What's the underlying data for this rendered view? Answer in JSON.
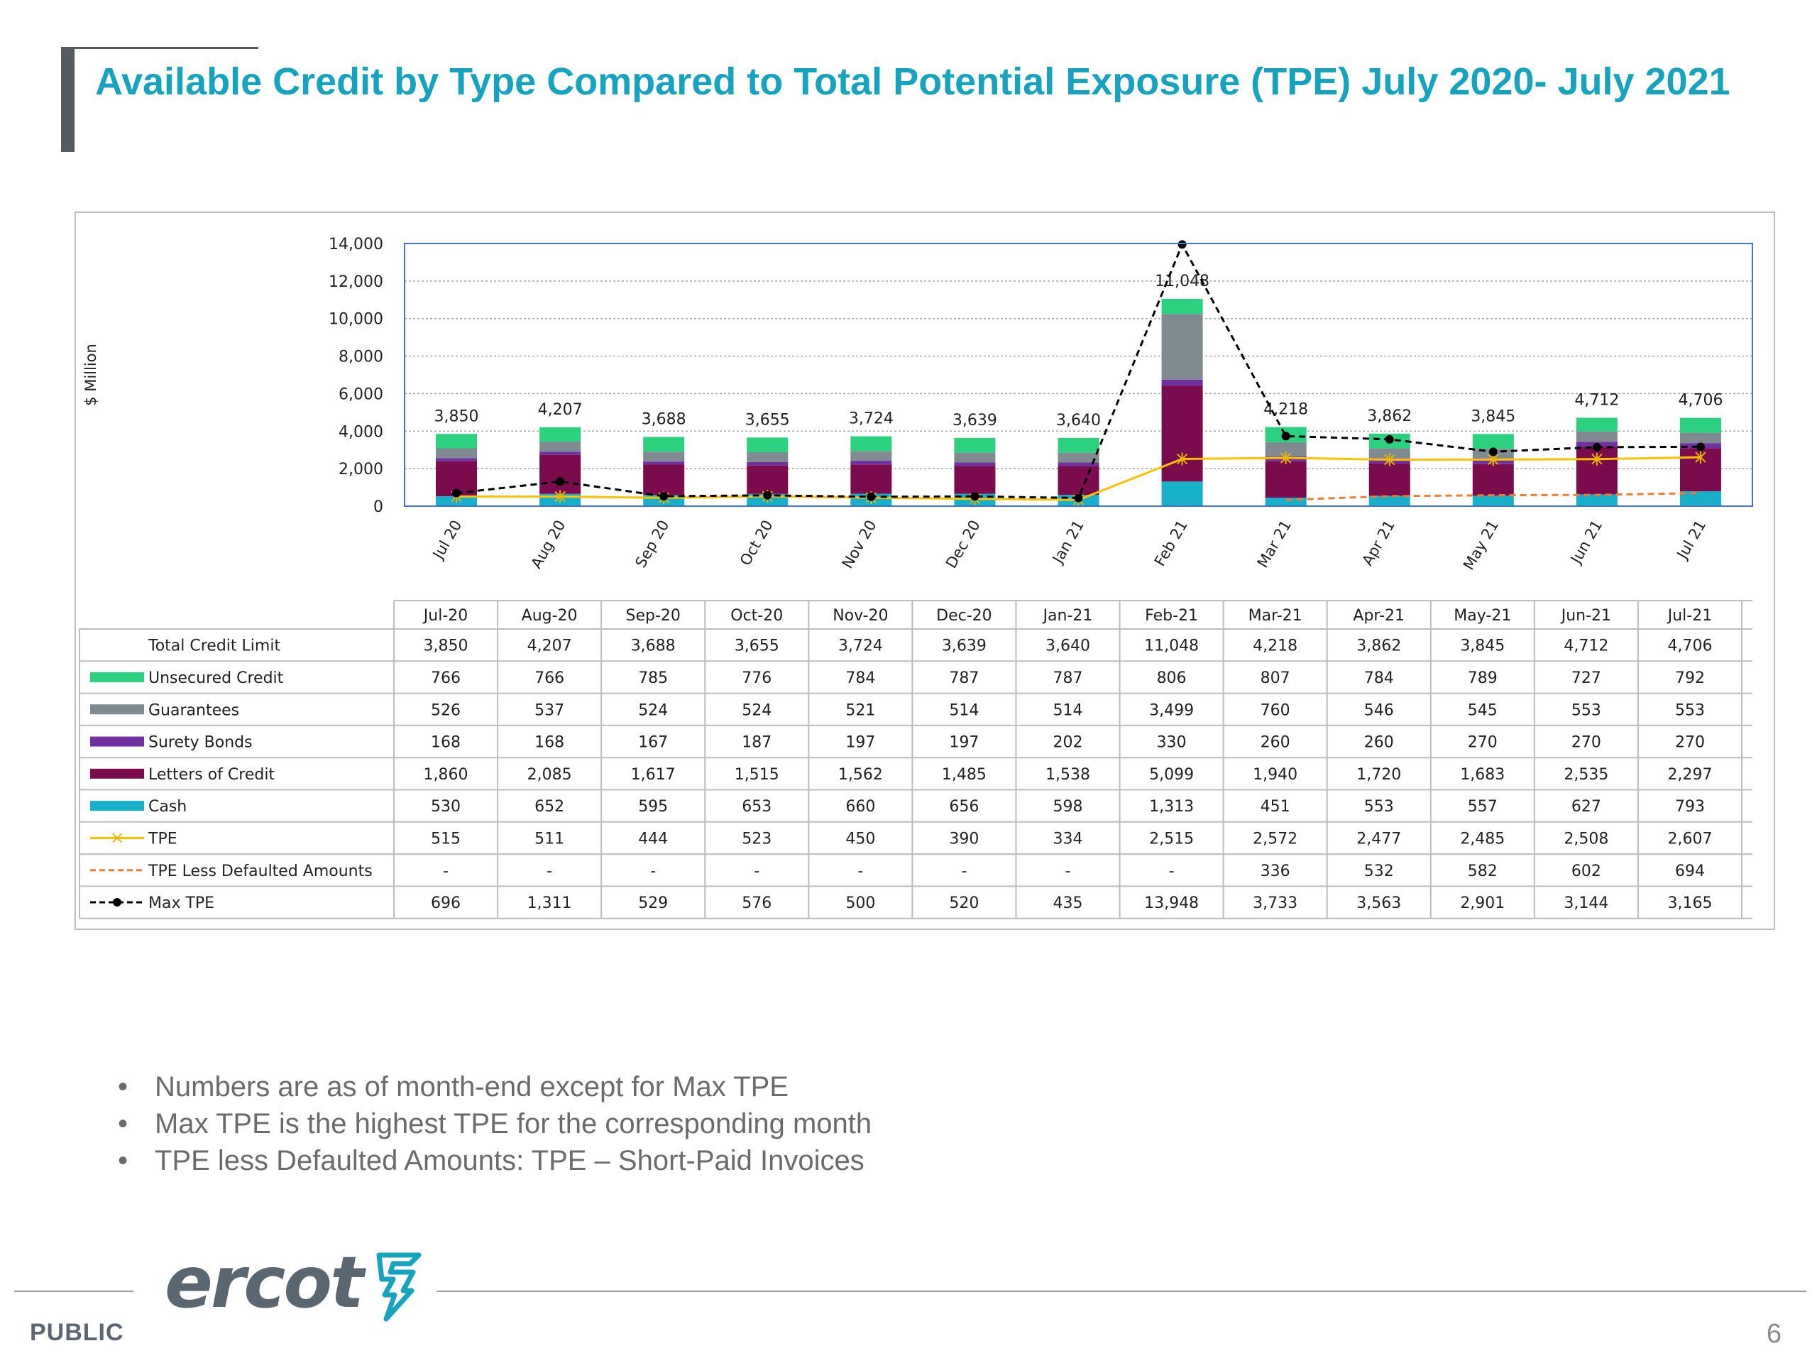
{
  "page": {
    "title": "Available Credit by Type Compared to Total Potential Exposure (TPE) July 2020- July 2021",
    "bullets": [
      "Numbers are as of month-end except for Max TPE",
      "Max TPE is the highest TPE for the corresponding month",
      "TPE less Defaulted Amounts: TPE – Short-Paid Invoices"
    ],
    "footer_label": "PUBLIC",
    "page_number": "6",
    "logo_text": "ercot"
  },
  "colors": {
    "title": "#17a3bd",
    "unsecured": "#2bd17e",
    "guarantees": "#7f8a91",
    "surety": "#7030a0",
    "loc": "#7a0b4c",
    "cash": "#18b0c8",
    "tpe": "#ffc000",
    "tpe_less": "#ed7d31",
    "max_tpe": "#000000",
    "plot_border": "#4472c4",
    "grid": "#a6a6a6"
  },
  "chart_data": {
    "type": "bar",
    "subtype": "stacked bar with line overlays and data table",
    "ylabel": "$ Million",
    "ylim": [
      0,
      14000
    ],
    "yticks": [
      "0",
      "2,000",
      "4,000",
      "6,000",
      "8,000",
      "10,000",
      "12,000",
      "14,000"
    ],
    "ytick_values": [
      0,
      2000,
      4000,
      6000,
      8000,
      10000,
      12000,
      14000
    ],
    "grid": "horizontal dashed",
    "x_tick_labels": [
      "Jul 20",
      "Aug 20",
      "Sep 20",
      "Oct 20",
      "Nov 20",
      "Dec 20",
      "Jan 21",
      "Feb 21",
      "Mar 21",
      "Apr 21",
      "May 21",
      "Jun 21",
      "Jul 21"
    ],
    "categories": [
      "Jul-20",
      "Aug-20",
      "Sep-20",
      "Oct-20",
      "Nov-20",
      "Dec-20",
      "Jan-21",
      "Feb-21",
      "Mar-21",
      "Apr-21",
      "May-21",
      "Jun-21",
      "Jul-21"
    ],
    "total_label": "Total Credit Limit",
    "totals": [
      3850,
      4207,
      3688,
      3655,
      3724,
      3639,
      3640,
      11048,
      4218,
      3862,
      3845,
      4712,
      4706
    ],
    "total_labels": [
      "3,850",
      "4,207",
      "3,688",
      "3,655",
      "3,724",
      "3,639",
      "3,640",
      "11,048",
      "4,218",
      "3,862",
      "3,845",
      "4,712",
      "4,706"
    ],
    "stacked_series": [
      {
        "key": "cash",
        "name": "Cash",
        "values": [
          530,
          652,
          595,
          653,
          660,
          656,
          598,
          1313,
          451,
          553,
          557,
          627,
          793
        ],
        "labels": [
          "530",
          "652",
          "595",
          "653",
          "660",
          "656",
          "598",
          "1,313",
          "451",
          "553",
          "557",
          "627",
          "793"
        ]
      },
      {
        "key": "loc",
        "name": "Letters of Credit",
        "values": [
          1860,
          2085,
          1617,
          1515,
          1562,
          1485,
          1538,
          5099,
          1940,
          1720,
          1683,
          2535,
          2297
        ],
        "labels": [
          "1,860",
          "2,085",
          "1,617",
          "1,515",
          "1,562",
          "1,485",
          "1,538",
          "5,099",
          "1,940",
          "1,720",
          "1,683",
          "2,535",
          "2,297"
        ]
      },
      {
        "key": "surety",
        "name": "Surety Bonds",
        "values": [
          168,
          168,
          167,
          187,
          197,
          197,
          202,
          330,
          260,
          260,
          270,
          270,
          270
        ],
        "labels": [
          "168",
          "168",
          "167",
          "187",
          "197",
          "197",
          "202",
          "330",
          "260",
          "260",
          "270",
          "270",
          "270"
        ]
      },
      {
        "key": "guarantees",
        "name": "Guarantees",
        "values": [
          526,
          537,
          524,
          524,
          521,
          514,
          514,
          3499,
          760,
          546,
          545,
          553,
          553
        ],
        "labels": [
          "526",
          "537",
          "524",
          "524",
          "521",
          "514",
          "514",
          "3,499",
          "760",
          "546",
          "545",
          "553",
          "553"
        ]
      },
      {
        "key": "unsecured",
        "name": "Unsecured Credit",
        "values": [
          766,
          766,
          785,
          776,
          784,
          787,
          787,
          806,
          807,
          784,
          789,
          727,
          792
        ],
        "labels": [
          "766",
          "766",
          "785",
          "776",
          "784",
          "787",
          "787",
          "806",
          "807",
          "784",
          "789",
          "727",
          "792"
        ]
      }
    ],
    "line_series": [
      {
        "key": "tpe",
        "name": "TPE",
        "values": [
          515,
          511,
          444,
          523,
          450,
          390,
          334,
          2515,
          2572,
          2477,
          2485,
          2508,
          2607
        ],
        "labels": [
          "515",
          "511",
          "444",
          "523",
          "450",
          "390",
          "334",
          "2,515",
          "2,572",
          "2,477",
          "2,485",
          "2,508",
          "2,607"
        ]
      },
      {
        "key": "tpe_less",
        "name": "TPE Less Defaulted Amounts",
        "values": [
          null,
          null,
          null,
          null,
          null,
          null,
          null,
          null,
          336,
          532,
          582,
          602,
          694
        ],
        "labels": [
          "-",
          "-",
          "-",
          "-",
          "-",
          "-",
          "-",
          "-",
          "336",
          "532",
          "582",
          "602",
          "694"
        ]
      },
      {
        "key": "max_tpe",
        "name": "Max TPE",
        "values": [
          696,
          1311,
          529,
          576,
          500,
          520,
          435,
          13948,
          3733,
          3563,
          2901,
          3144,
          3165
        ],
        "labels": [
          "696",
          "1,311",
          "529",
          "576",
          "500",
          "520",
          "435",
          "13,948",
          "3,733",
          "3,563",
          "2,901",
          "3,144",
          "3,165"
        ]
      }
    ],
    "table_row_order": [
      "total",
      "unsecured",
      "guarantees",
      "surety",
      "loc",
      "cash",
      "tpe",
      "tpe_less",
      "max_tpe"
    ]
  }
}
